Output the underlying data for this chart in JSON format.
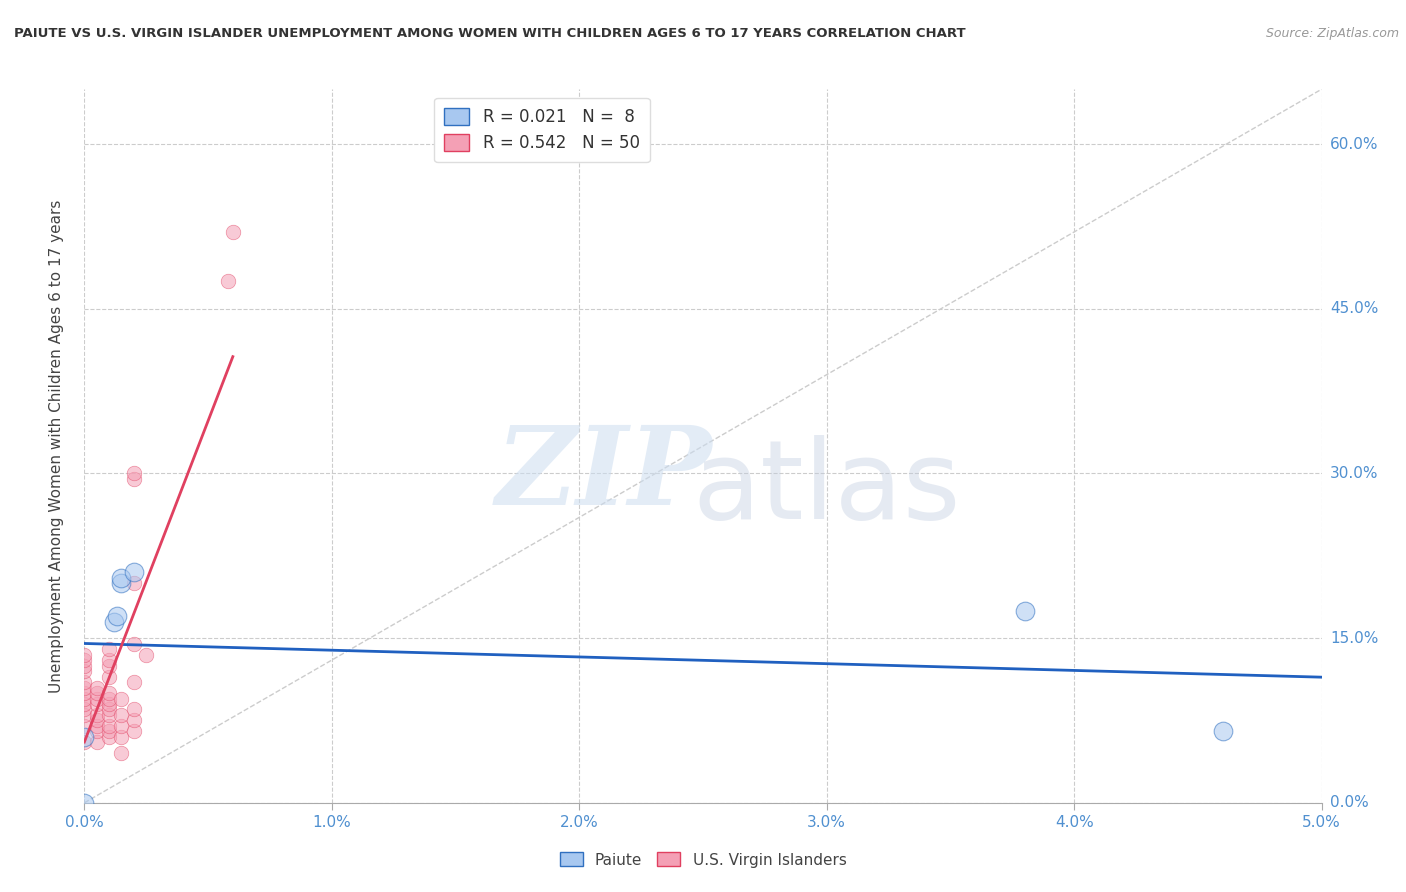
{
  "title": "PAIUTE VS U.S. VIRGIN ISLANDER UNEMPLOYMENT AMONG WOMEN WITH CHILDREN AGES 6 TO 17 YEARS CORRELATION CHART",
  "source": "Source: ZipAtlas.com",
  "ylabel": "Unemployment Among Women with Children Ages 6 to 17 years",
  "xlim": [
    0.0,
    0.05
  ],
  "ylim": [
    0.0,
    0.65
  ],
  "yticks": [
    0.0,
    0.15,
    0.3,
    0.45,
    0.6
  ],
  "ytick_labels": [
    "0.0%",
    "15.0%",
    "30.0%",
    "45.0%",
    "60.0%"
  ],
  "xticks": [
    0.0,
    0.01,
    0.02,
    0.03,
    0.04,
    0.05
  ],
  "xtick_labels": [
    "0.0%",
    "1.0%",
    "2.0%",
    "3.0%",
    "4.0%",
    "5.0%"
  ],
  "paiute_points": [
    [
      0.0,
      0.0
    ],
    [
      0.0,
      0.06
    ],
    [
      0.0012,
      0.165
    ],
    [
      0.0013,
      0.17
    ],
    [
      0.0015,
      0.2
    ],
    [
      0.0015,
      0.205
    ],
    [
      0.002,
      0.21
    ],
    [
      0.038,
      0.175
    ],
    [
      0.046,
      0.065
    ]
  ],
  "paiute_line_color": "#2060c0",
  "virgin_points": [
    [
      0.0,
      0.055
    ],
    [
      0.0,
      0.07
    ],
    [
      0.0,
      0.08
    ],
    [
      0.0,
      0.085
    ],
    [
      0.0,
      0.09
    ],
    [
      0.0,
      0.095
    ],
    [
      0.0,
      0.1
    ],
    [
      0.0,
      0.105
    ],
    [
      0.0,
      0.11
    ],
    [
      0.0,
      0.12
    ],
    [
      0.0,
      0.125
    ],
    [
      0.0,
      0.13
    ],
    [
      0.0,
      0.135
    ],
    [
      0.0005,
      0.055
    ],
    [
      0.0005,
      0.065
    ],
    [
      0.0005,
      0.07
    ],
    [
      0.0005,
      0.075
    ],
    [
      0.0005,
      0.08
    ],
    [
      0.0005,
      0.09
    ],
    [
      0.0005,
      0.095
    ],
    [
      0.0005,
      0.1
    ],
    [
      0.0005,
      0.105
    ],
    [
      0.001,
      0.06
    ],
    [
      0.001,
      0.065
    ],
    [
      0.001,
      0.07
    ],
    [
      0.001,
      0.08
    ],
    [
      0.001,
      0.085
    ],
    [
      0.001,
      0.09
    ],
    [
      0.001,
      0.095
    ],
    [
      0.001,
      0.1
    ],
    [
      0.001,
      0.115
    ],
    [
      0.001,
      0.125
    ],
    [
      0.001,
      0.13
    ],
    [
      0.001,
      0.14
    ],
    [
      0.0015,
      0.045
    ],
    [
      0.0015,
      0.06
    ],
    [
      0.0015,
      0.07
    ],
    [
      0.0015,
      0.08
    ],
    [
      0.0015,
      0.095
    ],
    [
      0.002,
      0.065
    ],
    [
      0.002,
      0.075
    ],
    [
      0.002,
      0.085
    ],
    [
      0.002,
      0.11
    ],
    [
      0.002,
      0.145
    ],
    [
      0.002,
      0.2
    ],
    [
      0.002,
      0.295
    ],
    [
      0.002,
      0.3
    ],
    [
      0.0025,
      0.135
    ],
    [
      0.0058,
      0.475
    ],
    [
      0.006,
      0.52
    ]
  ],
  "virgin_line_color": "#e04060",
  "background_color": "#ffffff",
  "grid_color": "#cccccc",
  "dot_size_paiute": 180,
  "dot_size_virgin": 110,
  "dot_alpha": 0.55,
  "paiute_color": "#a8c8f0",
  "paiute_edge": "#3070c0",
  "virgin_color": "#f4a0b5",
  "virgin_edge": "#e04060"
}
